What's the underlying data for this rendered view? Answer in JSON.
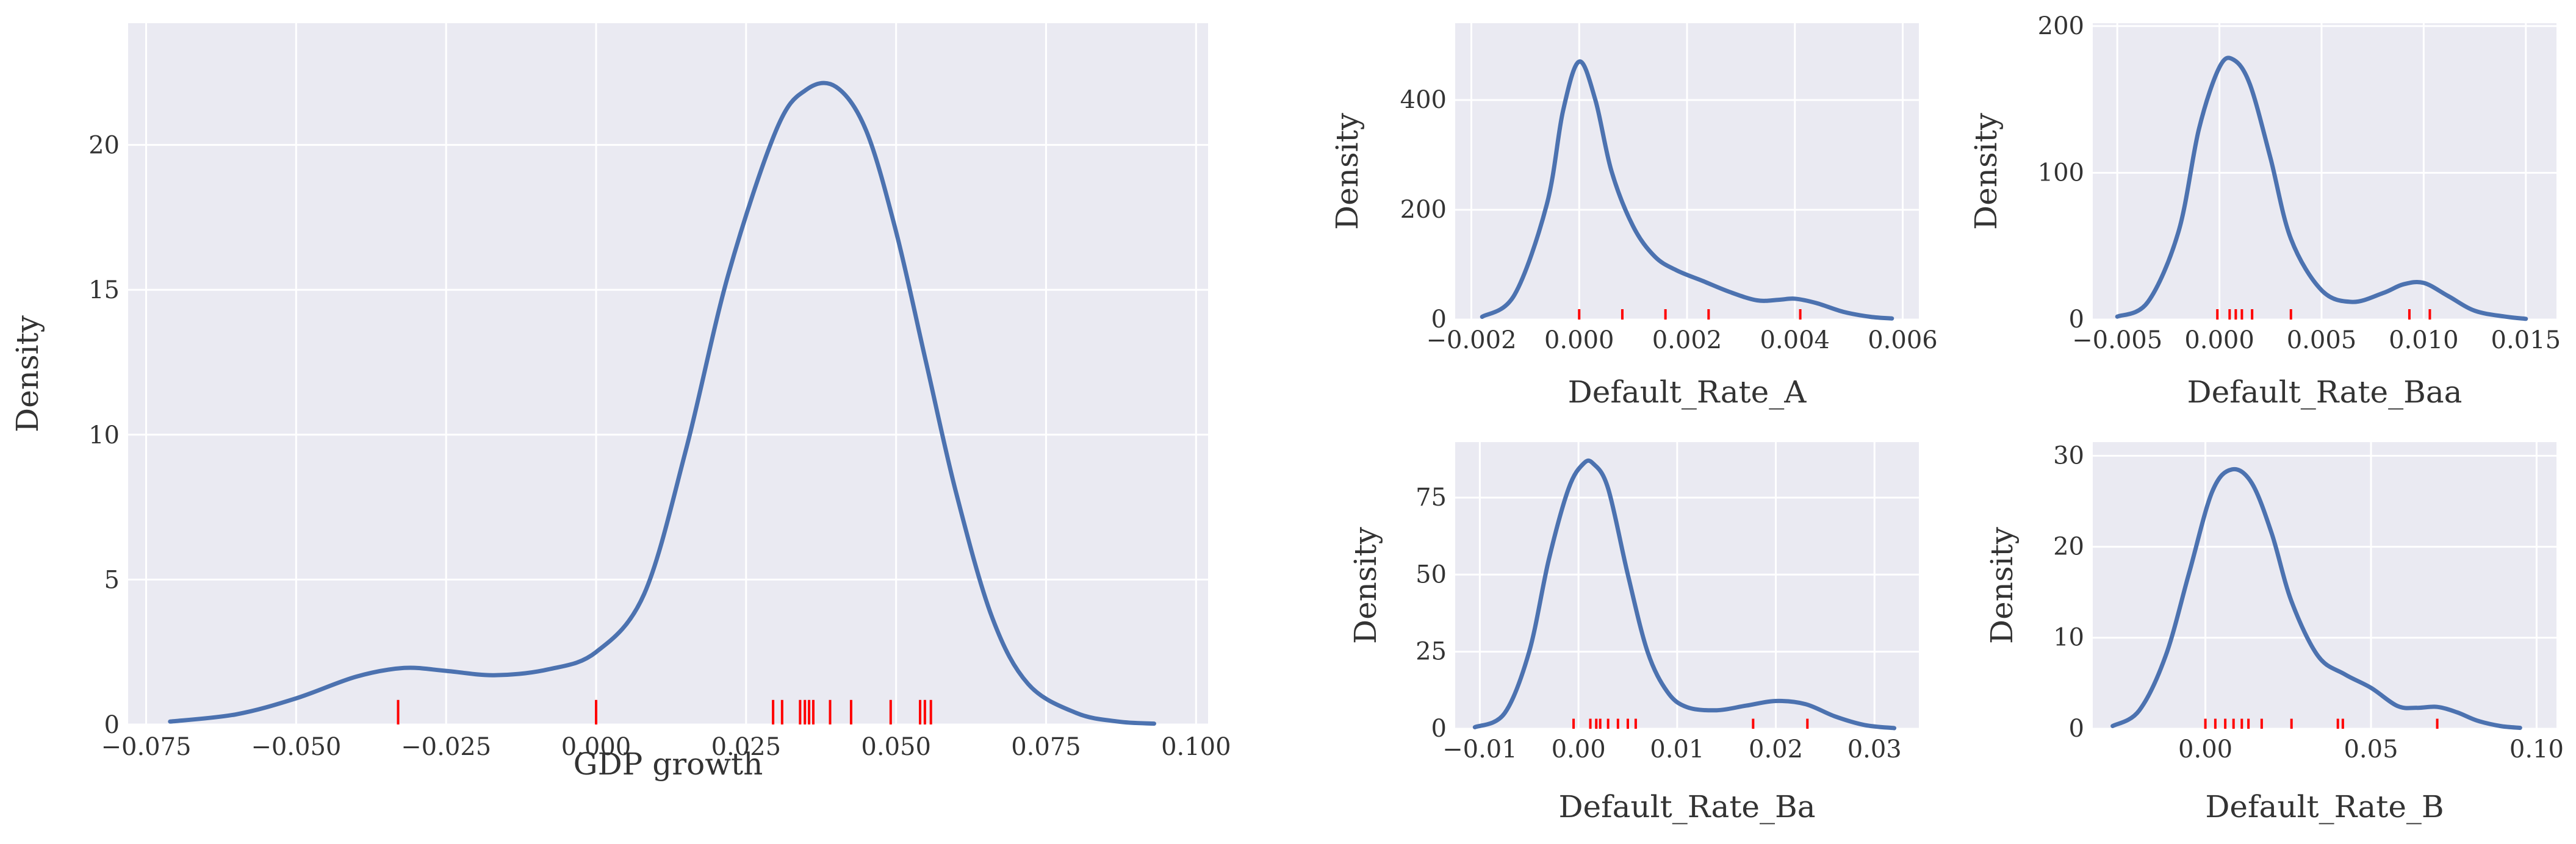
{
  "chart_data": [
    {
      "id": "gdp",
      "type": "line",
      "xlabel": "GDP growth",
      "ylabel": "Density",
      "xlim": [
        -0.078,
        0.102
      ],
      "ylim": [
        0,
        24.2
      ],
      "xticks": [
        -0.075,
        -0.05,
        -0.025,
        0.0,
        0.025,
        0.05,
        0.075,
        0.1
      ],
      "xtick_labels": [
        "−0.075",
        "−0.050",
        "−0.025",
        "0.000",
        "0.025",
        "0.050",
        "0.075",
        "0.100"
      ],
      "yticks": [
        0,
        5,
        10,
        15,
        20
      ],
      "ytick_labels": [
        "0",
        "5",
        "10",
        "15",
        "20"
      ],
      "grid": true,
      "series": [
        {
          "x": [
            -0.071,
            -0.06,
            -0.05,
            -0.04,
            -0.032,
            -0.025,
            -0.017,
            -0.008,
            0.0,
            0.008,
            0.015,
            0.022,
            0.03,
            0.035,
            0.04,
            0.045,
            0.05,
            0.055,
            0.06,
            0.066,
            0.072,
            0.08,
            0.087,
            0.093
          ],
          "y": [
            0.1,
            0.35,
            0.9,
            1.65,
            1.95,
            1.85,
            1.7,
            1.9,
            2.5,
            4.5,
            9.5,
            15.5,
            20.5,
            21.9,
            22.0,
            20.5,
            17.0,
            12.5,
            8.0,
            3.7,
            1.4,
            0.4,
            0.1,
            0.03
          ]
        }
      ],
      "rug": [
        -0.033,
        0.0,
        0.0295,
        0.031,
        0.034,
        0.0348,
        0.0355,
        0.0362,
        0.039,
        0.0425,
        0.0491,
        0.054,
        0.0548,
        0.0558
      ]
    },
    {
      "id": "rate_a",
      "type": "line",
      "xlabel": "Default_Rate_A",
      "ylabel": "Density",
      "xlim": [
        -0.0023,
        0.0063
      ],
      "ylim": [
        0,
        540
      ],
      "xticks": [
        -0.002,
        0.0,
        0.002,
        0.004,
        0.006
      ],
      "xtick_labels": [
        "−0.002",
        "0.000",
        "0.002",
        "0.004",
        "0.006"
      ],
      "yticks": [
        0,
        200,
        400
      ],
      "ytick_labels": [
        "0",
        "200",
        "400"
      ],
      "grid": true,
      "series": [
        {
          "x": [
            -0.0018,
            -0.0012,
            -0.0006,
            -0.0003,
            0.0,
            0.0003,
            0.0006,
            0.001,
            0.0014,
            0.0018,
            0.0023,
            0.0028,
            0.0033,
            0.0037,
            0.004,
            0.0044,
            0.0049,
            0.0054,
            0.0058
          ],
          "y": [
            5,
            45,
            210,
            380,
            470,
            400,
            270,
            170,
            115,
            90,
            70,
            50,
            35,
            36,
            38,
            30,
            14,
            5,
            2
          ]
        }
      ],
      "rug": [
        0.0,
        0.0008,
        0.0016,
        0.0024,
        0.0041
      ]
    },
    {
      "id": "rate_baa",
      "type": "line",
      "xlabel": "Default_Rate_Baa",
      "ylabel": "Density",
      "xlim": [
        -0.0062,
        0.0165
      ],
      "ylim": [
        0,
        202
      ],
      "xticks": [
        -0.005,
        0.0,
        0.005,
        0.01,
        0.015
      ],
      "xtick_labels": [
        "−0.005",
        "0.000",
        "0.005",
        "0.010",
        "0.015"
      ],
      "yticks": [
        0,
        100,
        200
      ],
      "ytick_labels": [
        "0",
        "100",
        "200"
      ],
      "grid": true,
      "series": [
        {
          "x": [
            -0.005,
            -0.0035,
            -0.002,
            -0.001,
            0.0,
            0.0007,
            0.0015,
            0.0025,
            0.0035,
            0.005,
            0.0065,
            0.008,
            0.009,
            0.01,
            0.0112,
            0.0125,
            0.014,
            0.015
          ],
          "y": [
            2,
            12,
            60,
            130,
            172,
            177,
            160,
            110,
            55,
            20,
            12,
            18,
            24,
            25,
            16,
            6,
            2,
            0.5
          ]
        }
      ],
      "rug": [
        -0.0001,
        0.0005,
        0.0008,
        0.0011,
        0.0016,
        0.0035,
        0.0093,
        0.0103
      ]
    },
    {
      "id": "rate_ba",
      "type": "line",
      "xlabel": "Default_Rate_Ba",
      "ylabel": "Density",
      "xlim": [
        -0.0125,
        0.0345
      ],
      "ylim": [
        0,
        93
      ],
      "xticks": [
        -0.01,
        0.0,
        0.01,
        0.02,
        0.03
      ],
      "xtick_labels": [
        "−0.01",
        "0.00",
        "0.01",
        "0.02",
        "0.03"
      ],
      "yticks": [
        0,
        25,
        50,
        75
      ],
      "ytick_labels": [
        "0",
        "25",
        "50",
        "75"
      ],
      "grid": true,
      "series": [
        {
          "x": [
            -0.0105,
            -0.0075,
            -0.005,
            -0.003,
            -0.001,
            0.0005,
            0.0015,
            0.003,
            0.005,
            0.007,
            0.009,
            0.011,
            0.014,
            0.017,
            0.02,
            0.023,
            0.026,
            0.029,
            0.032
          ],
          "y": [
            0.5,
            5,
            25,
            55,
            78,
            86,
            86,
            78,
            50,
            25,
            12,
            7,
            6,
            7.5,
            9,
            8,
            4,
            1.2,
            0.2
          ]
        }
      ],
      "rug": [
        -0.0005,
        0.0012,
        0.0018,
        0.0022,
        0.003,
        0.004,
        0.005,
        0.0058,
        0.0177,
        0.0232
      ]
    },
    {
      "id": "rate_b",
      "type": "line",
      "xlabel": "Default_Rate_B",
      "ylabel": "Density",
      "xlim": [
        -0.034,
        0.106
      ],
      "ylim": [
        0,
        31.5
      ],
      "xticks": [
        0.0,
        0.05,
        0.1
      ],
      "xtick_labels": [
        "0.00",
        "0.05",
        "0.10"
      ],
      "yticks": [
        0,
        10,
        20,
        30
      ],
      "ytick_labels": [
        "0",
        "10",
        "20",
        "30"
      ],
      "grid": true,
      "series": [
        {
          "x": [
            -0.028,
            -0.02,
            -0.012,
            -0.005,
            0.002,
            0.008,
            0.014,
            0.02,
            0.026,
            0.034,
            0.042,
            0.05,
            0.058,
            0.064,
            0.07,
            0.076,
            0.082,
            0.089,
            0.095
          ],
          "y": [
            0.3,
            2,
            8,
            17,
            26,
            28.5,
            27,
            21.5,
            14,
            8,
            6,
            4.5,
            2.5,
            2.3,
            2.4,
            1.8,
            0.9,
            0.3,
            0.1
          ]
        }
      ],
      "rug": [
        0.0,
        0.003,
        0.006,
        0.0085,
        0.011,
        0.013,
        0.017,
        0.026,
        0.04,
        0.0415,
        0.07
      ]
    }
  ]
}
